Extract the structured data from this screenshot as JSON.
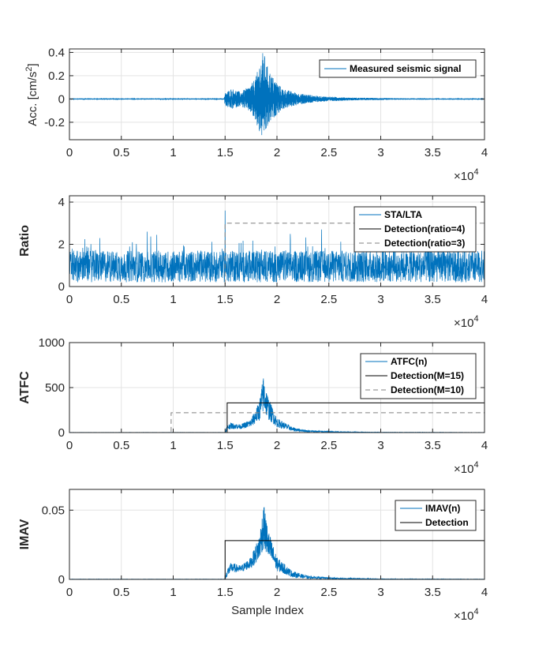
{
  "chart_data": [
    {
      "type": "line",
      "ylabel": "Acc. [cm/s",
      "ylabel_sup": "2",
      "ylabel_close": "]",
      "xlim": [
        0,
        40000
      ],
      "ylim": [
        -0.35,
        0.43
      ],
      "x_ticks": [
        0,
        5000,
        10000,
        15000,
        20000,
        25000,
        30000,
        35000,
        40000
      ],
      "x_tick_labels": [
        "0",
        "0.5",
        "1",
        "1.5",
        "2",
        "2.5",
        "3",
        "3.5",
        "4"
      ],
      "y_ticks": [
        -0.2,
        0,
        0.2,
        0.4
      ],
      "y_tick_labels": [
        "-0.2",
        "0",
        "0.2",
        "0.4"
      ],
      "x_multiplier_base": "×10",
      "x_multiplier_exp": "4",
      "grid": true,
      "legend_position": "top-right",
      "series": [
        {
          "name": "Measured seismic signal",
          "style": "signal",
          "color": "#0072BD",
          "envelope": {
            "x": [
              0,
              14900,
              15000,
              15600,
              16500,
              17500,
              18000,
              18400,
              18700,
              19000,
              19500,
              20500,
              22000,
              24000,
              27000,
              32000,
              40000
            ],
            "upper": [
              0.005,
              0.005,
              0.05,
              0.09,
              0.06,
              0.12,
              0.2,
              0.33,
              0.42,
              0.3,
              0.2,
              0.09,
              0.05,
              0.025,
              0.012,
              0.006,
              0.005
            ],
            "lower": [
              -0.005,
              -0.005,
              -0.06,
              -0.09,
              -0.06,
              -0.12,
              -0.22,
              -0.32,
              -0.34,
              -0.27,
              -0.18,
              -0.09,
              -0.05,
              -0.025,
              -0.012,
              -0.006,
              -0.005
            ]
          }
        }
      ]
    },
    {
      "type": "line",
      "ylabel": "Ratio",
      "xlim": [
        0,
        40000
      ],
      "ylim": [
        0,
        4.3
      ],
      "x_ticks": [
        0,
        5000,
        10000,
        15000,
        20000,
        25000,
        30000,
        35000,
        40000
      ],
      "x_tick_labels": [
        "0",
        "0.5",
        "1",
        "1.5",
        "2",
        "2.5",
        "3",
        "3.5",
        "4"
      ],
      "y_ticks": [
        0,
        2,
        4
      ],
      "y_tick_labels": [
        "0",
        "2",
        "4"
      ],
      "x_multiplier_base": "×10",
      "x_multiplier_exp": "4",
      "grid": true,
      "legend_position": "top-right",
      "series": [
        {
          "name": "STA/LTA",
          "style": "noise",
          "color": "#0072BD",
          "baseline": 0.95,
          "amplitude": 0.75,
          "spikes": [
            [
              15000,
              3.6
            ],
            [
              7500,
              2.6
            ],
            [
              24300,
              2.7
            ],
            [
              30200,
              2.7
            ]
          ]
        },
        {
          "name": "Detection(ratio=4)",
          "style": "solid",
          "color": "#000000",
          "step": {
            "x_on": null,
            "level": 0
          }
        },
        {
          "name": "Detection(ratio=3)",
          "style": "dashed",
          "color": "#808080",
          "step": {
            "x_on": 15000,
            "level": 3.0
          }
        }
      ]
    },
    {
      "type": "line",
      "ylabel": "ATFC",
      "xlim": [
        0,
        40000
      ],
      "ylim": [
        0,
        1000
      ],
      "x_ticks": [
        0,
        5000,
        10000,
        15000,
        20000,
        25000,
        30000,
        35000,
        40000
      ],
      "x_tick_labels": [
        "0",
        "0.5",
        "1",
        "1.5",
        "2",
        "2.5",
        "3",
        "3.5",
        "4"
      ],
      "y_ticks": [
        0,
        500,
        1000
      ],
      "y_tick_labels": [
        "0",
        "500",
        "1000"
      ],
      "x_multiplier_base": "×10",
      "x_multiplier_exp": "4",
      "grid": true,
      "legend_position": "top-right",
      "series": [
        {
          "name": "ATFC(n)",
          "style": "envelope",
          "color": "#0072BD",
          "envelope": {
            "x": [
              0,
              15000,
              15200,
              15500,
              16500,
              17500,
              18300,
              18700,
              19200,
              20000,
              21500,
              23000,
              26000,
              30000,
              40000
            ],
            "upper": [
              2,
              2,
              80,
              110,
              90,
              150,
              350,
              640,
              380,
              160,
              60,
              25,
              10,
              4,
              2
            ],
            "lower": [
              0,
              0,
              20,
              40,
              40,
              60,
              130,
              220,
              140,
              60,
              15,
              5,
              2,
              0,
              0
            ]
          }
        },
        {
          "name": "Detection(M=15)",
          "style": "solid",
          "color": "#000000",
          "step": {
            "x_on": 15200,
            "level": 330
          }
        },
        {
          "name": "Detection(M=10)",
          "style": "dashed",
          "color": "#808080",
          "step": {
            "x_on": 9800,
            "level": 220
          }
        }
      ]
    },
    {
      "type": "line",
      "ylabel": "IMAV",
      "xlabel": "Sample Index",
      "xlim": [
        0,
        40000
      ],
      "ylim": [
        0,
        0.065
      ],
      "x_ticks": [
        0,
        5000,
        10000,
        15000,
        20000,
        25000,
        30000,
        35000,
        40000
      ],
      "x_tick_labels": [
        "0",
        "0.5",
        "1",
        "1.5",
        "2",
        "2.5",
        "3",
        "3.5",
        "4"
      ],
      "y_ticks": [
        0,
        0.05
      ],
      "y_tick_labels": [
        "0",
        "0.05"
      ],
      "x_multiplier_base": "×10",
      "x_multiplier_exp": "4",
      "grid": true,
      "legend_position": "top-right",
      "series": [
        {
          "name": "IMAV(n)",
          "style": "envelope",
          "color": "#0072BD",
          "envelope": {
            "x": [
              0,
              15000,
              15200,
              15600,
              16500,
              17500,
              18300,
              18700,
              19200,
              20000,
              21500,
              23000,
              26000,
              30000,
              40000
            ],
            "upper": [
              0.0002,
              0.0002,
              0.008,
              0.012,
              0.01,
              0.016,
              0.032,
              0.055,
              0.035,
              0.016,
              0.006,
              0.0025,
              0.001,
              0.0004,
              0.0002
            ],
            "lower": [
              0,
              0,
              0.002,
              0.005,
              0.005,
              0.008,
              0.014,
              0.022,
              0.014,
              0.006,
              0.0015,
              0.0005,
              0.0002,
              0,
              0
            ]
          }
        },
        {
          "name": "Detection",
          "style": "solid",
          "color": "#000000",
          "step": {
            "x_on": 15000,
            "level": 0.028
          }
        }
      ]
    }
  ]
}
